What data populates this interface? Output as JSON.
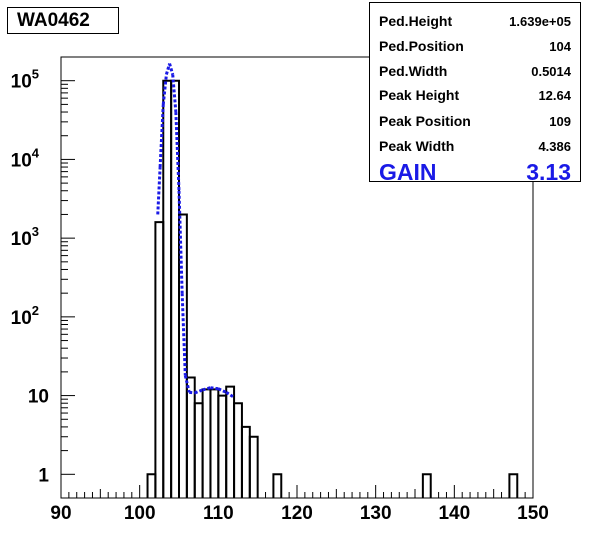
{
  "title": "WA0462",
  "stats": [
    {
      "label": "Ped.Height",
      "value": "1.639e+05"
    },
    {
      "label": "Ped.Position",
      "value": "104"
    },
    {
      "label": "Ped.Width",
      "value": "0.5014"
    },
    {
      "label": "Peak Height",
      "value": "12.64"
    },
    {
      "label": "Peak Position",
      "value": "109"
    },
    {
      "label": "Peak Width",
      "value": "4.386"
    }
  ],
  "gain": {
    "label": "GAIN",
    "value": "3.13"
  },
  "colors": {
    "histogram": "#000000",
    "fit": "#1a1ae6",
    "gain": "#1a1ae6"
  },
  "chart_data": {
    "type": "histogram",
    "xlim": [
      90,
      150
    ],
    "ylim": [
      0.5,
      200000
    ],
    "y_scale": "log",
    "grid": false,
    "x_ticks": [
      "90",
      "100",
      "110",
      "120",
      "130",
      "140",
      "150"
    ],
    "y_ticks": [
      "1",
      "10",
      "10^2",
      "10^3",
      "10^4",
      "10^5"
    ],
    "bin_width": 1,
    "bins": [
      {
        "x": 101,
        "y": 1
      },
      {
        "x": 102,
        "y": 1600
      },
      {
        "x": 103,
        "y": 100000
      },
      {
        "x": 104,
        "y": 100000
      },
      {
        "x": 105,
        "y": 2000
      },
      {
        "x": 106,
        "y": 17
      },
      {
        "x": 107,
        "y": 8
      },
      {
        "x": 108,
        "y": 12
      },
      {
        "x": 109,
        "y": 12
      },
      {
        "x": 110,
        "y": 10
      },
      {
        "x": 111,
        "y": 13
      },
      {
        "x": 112,
        "y": 8
      },
      {
        "x": 113,
        "y": 4
      },
      {
        "x": 114,
        "y": 3
      },
      {
        "x": 117,
        "y": 1
      },
      {
        "x": 136,
        "y": 1
      },
      {
        "x": 147,
        "y": 1
      }
    ],
    "fit_curve": [
      {
        "x": 102.3,
        "y": 2000
      },
      {
        "x": 102.6,
        "y": 8000
      },
      {
        "x": 103.0,
        "y": 50000
      },
      {
        "x": 103.4,
        "y": 120000
      },
      {
        "x": 103.8,
        "y": 165000
      },
      {
        "x": 104.2,
        "y": 120000
      },
      {
        "x": 104.6,
        "y": 40000
      },
      {
        "x": 105.0,
        "y": 4000
      },
      {
        "x": 105.4,
        "y": 200
      },
      {
        "x": 105.8,
        "y": 18
      },
      {
        "x": 106.3,
        "y": 11
      },
      {
        "x": 107.0,
        "y": 10.8
      },
      {
        "x": 108.0,
        "y": 11.8
      },
      {
        "x": 109.0,
        "y": 12.6
      },
      {
        "x": 110.0,
        "y": 12.2
      },
      {
        "x": 111.0,
        "y": 11.0
      },
      {
        "x": 112.0,
        "y": 9.5
      }
    ]
  }
}
